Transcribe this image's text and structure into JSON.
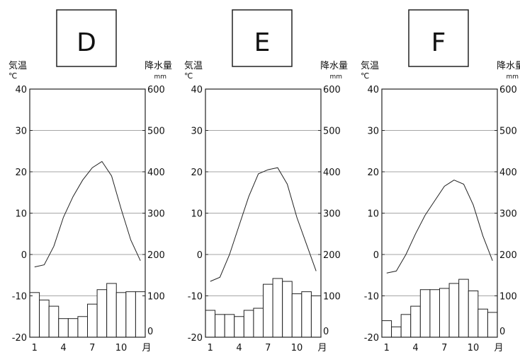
{
  "labels": {
    "temp_label": "気温",
    "temp_unit": "℃",
    "precip_label": "降水量",
    "precip_unit": "mm",
    "month_unit": "月"
  },
  "axes": {
    "temp_ticks": [
      40,
      30,
      20,
      10,
      0,
      -10,
      -20
    ],
    "precip_ticks": [
      600,
      500,
      400,
      300,
      200,
      100,
      0
    ],
    "month_ticks": [
      1,
      4,
      7,
      10
    ]
  },
  "chart_data": [
    {
      "type": "climograph",
      "title": "D",
      "x": [
        1,
        2,
        3,
        4,
        5,
        6,
        7,
        8,
        9,
        10,
        11,
        12
      ],
      "temperature_c": [
        -3,
        -2.5,
        2,
        9,
        14,
        18,
        21,
        22.5,
        19,
        11,
        3.5,
        -1.5
      ],
      "precipitation_mm": [
        108,
        90,
        75,
        45,
        45,
        50,
        80,
        115,
        130,
        108,
        110,
        110
      ],
      "ylim_temp": [
        -20,
        40
      ],
      "ylim_precip": [
        0,
        600
      ],
      "grid": true
    },
    {
      "type": "climograph",
      "title": "E",
      "x": [
        1,
        2,
        3,
        4,
        5,
        6,
        7,
        8,
        9,
        10,
        11,
        12
      ],
      "temperature_c": [
        -6.5,
        -5.5,
        0,
        7,
        14,
        19.5,
        20.5,
        21,
        17,
        9,
        2.5,
        -4
      ],
      "precipitation_mm": [
        65,
        55,
        55,
        50,
        65,
        70,
        128,
        142,
        135,
        105,
        110,
        100
      ],
      "ylim_temp": [
        -20,
        40
      ],
      "ylim_precip": [
        0,
        600
      ],
      "grid": true
    },
    {
      "type": "climograph",
      "title": "F",
      "x": [
        1,
        2,
        3,
        4,
        5,
        6,
        7,
        8,
        9,
        10,
        11,
        12
      ],
      "temperature_c": [
        -4.5,
        -4,
        0,
        5,
        9.5,
        13,
        16.5,
        18,
        17,
        12,
        4.5,
        -1.5
      ],
      "precipitation_mm": [
        40,
        25,
        55,
        75,
        115,
        115,
        118,
        130,
        140,
        112,
        68,
        60
      ],
      "ylim_temp": [
        -20,
        40
      ],
      "ylim_precip": [
        0,
        600
      ],
      "grid": true
    }
  ]
}
